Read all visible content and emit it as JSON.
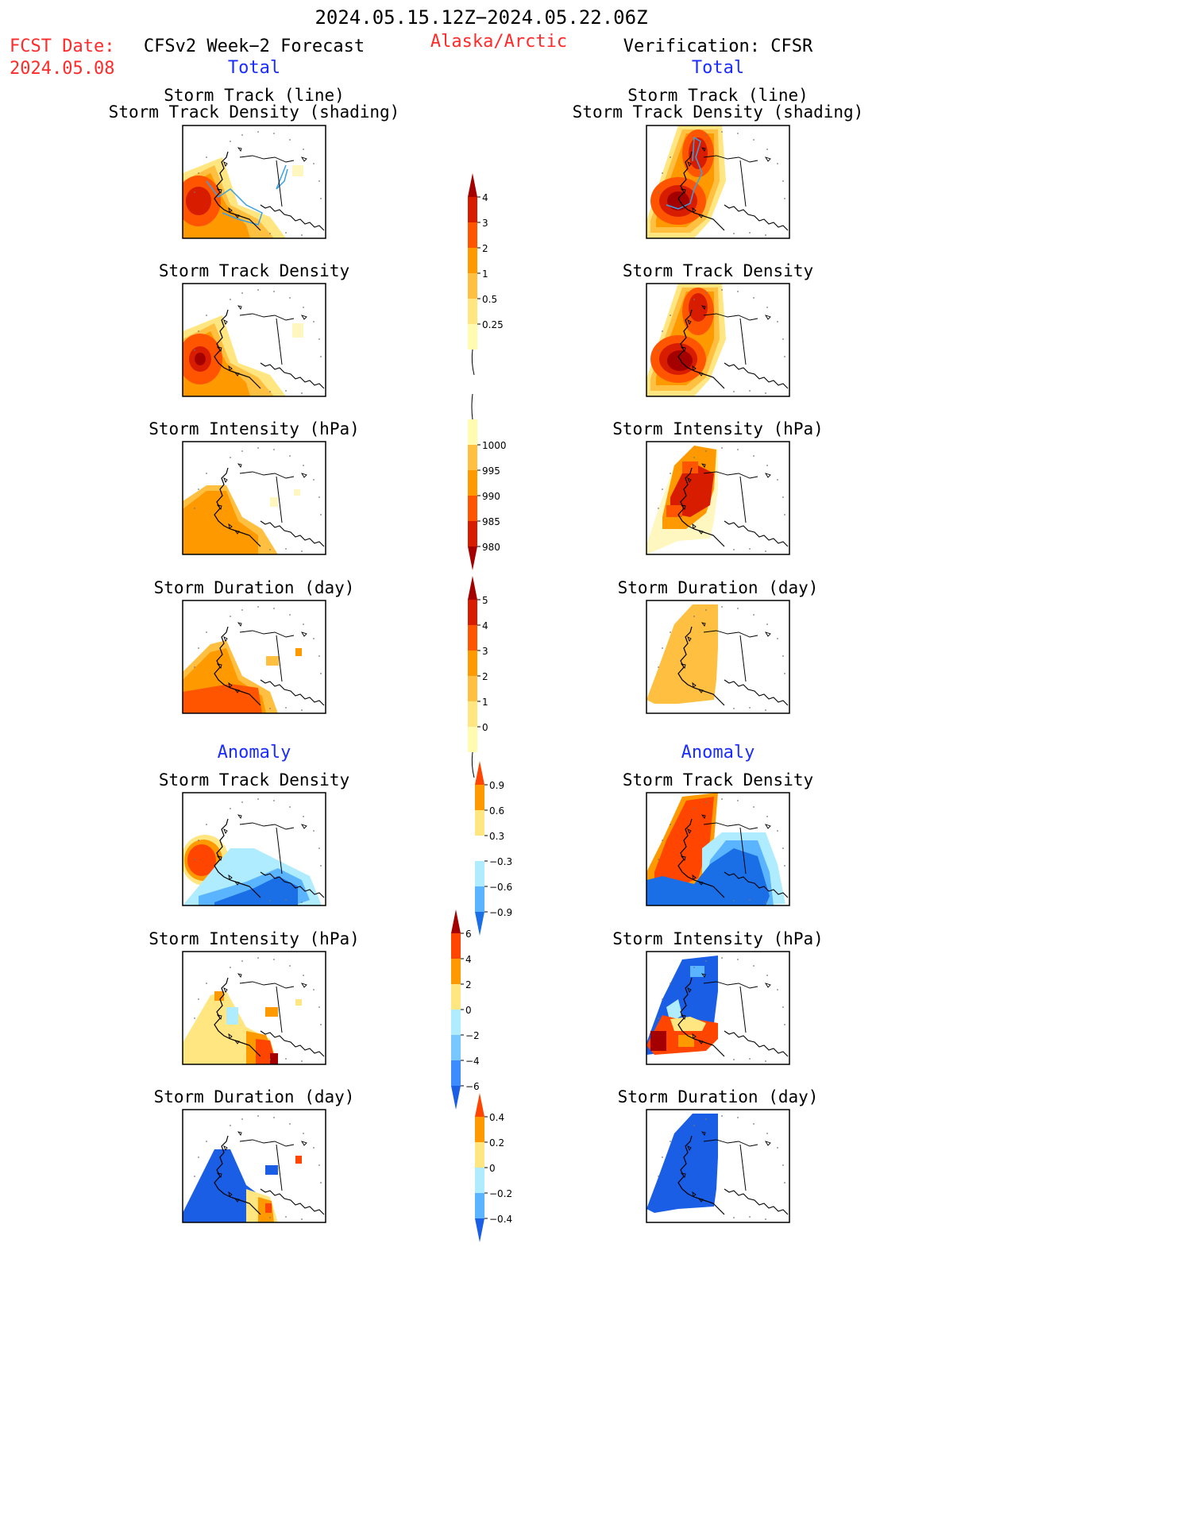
{
  "header": {
    "date_range": "2024.05.15.12Z−2024.05.22.06Z",
    "fcst_label": "FCST Date:",
    "fcst_date": "2024.05.08",
    "left_column_title": "CFSv2 Week−2 Forecast",
    "region": "Alaska/Arctic",
    "right_column_title": "Verification: CFSR"
  },
  "sections": {
    "total_label": "Total",
    "anomaly_label": "Anomaly"
  },
  "panel_titles": {
    "storm_track_line": "Storm Track (line)",
    "storm_track_density_shading": "Storm Track Density (shading)",
    "storm_track_density": "Storm Track Density",
    "storm_intensity": "Storm Intensity (hPa)",
    "storm_duration": "Storm Duration (day)"
  },
  "colorbars": [
    {
      "name": "track-density-total",
      "labels": [
        "4",
        "3",
        "2",
        "1",
        "0.5",
        "0.25"
      ],
      "colors": [
        "#a50000",
        "#d81c00",
        "#ff5500",
        "#ff9900",
        "#ffbf40",
        "#ffe680",
        "#fffcb0"
      ]
    },
    {
      "name": "intensity-total",
      "labels": [
        "1000",
        "995",
        "990",
        "985",
        "980"
      ],
      "colors": [
        "#fffcb0",
        "#ffbf40",
        "#ff9900",
        "#ff5500",
        "#d81c00",
        "#a50000"
      ]
    },
    {
      "name": "duration-total",
      "labels": [
        "5",
        "4",
        "3",
        "2",
        "1",
        "0"
      ],
      "colors": [
        "#a50000",
        "#d81c00",
        "#ff5500",
        "#ff9900",
        "#ffbf40",
        "#ffe680",
        "#fffcb0"
      ]
    },
    {
      "name": "track-density-anomaly",
      "labels": [
        "0.9",
        "0.6",
        "0.3",
        "−0.3",
        "−0.6",
        "−0.9"
      ],
      "colors": [
        "#ff4500",
        "#ff9900",
        "#ffe680",
        "#ffffff",
        "#b0ecff",
        "#5ab4ff",
        "#1a6ee6"
      ]
    },
    {
      "name": "intensity-anomaly",
      "labels": [
        "6",
        "4",
        "2",
        "0",
        "−2",
        "−4",
        "−6"
      ],
      "colors": [
        "#a50000",
        "#ff4500",
        "#ff9900",
        "#ffe680",
        "#b0ecff",
        "#78c8ff",
        "#3c8cff",
        "#1a5ee6"
      ]
    },
    {
      "name": "duration-anomaly",
      "labels": [
        "0.4",
        "0.2",
        "0",
        "−0.2",
        "−0.4"
      ],
      "colors": [
        "#ff4500",
        "#ff9900",
        "#ffe680",
        "#b0ecff",
        "#5ab4ff",
        "#1a5ee6"
      ]
    }
  ]
}
